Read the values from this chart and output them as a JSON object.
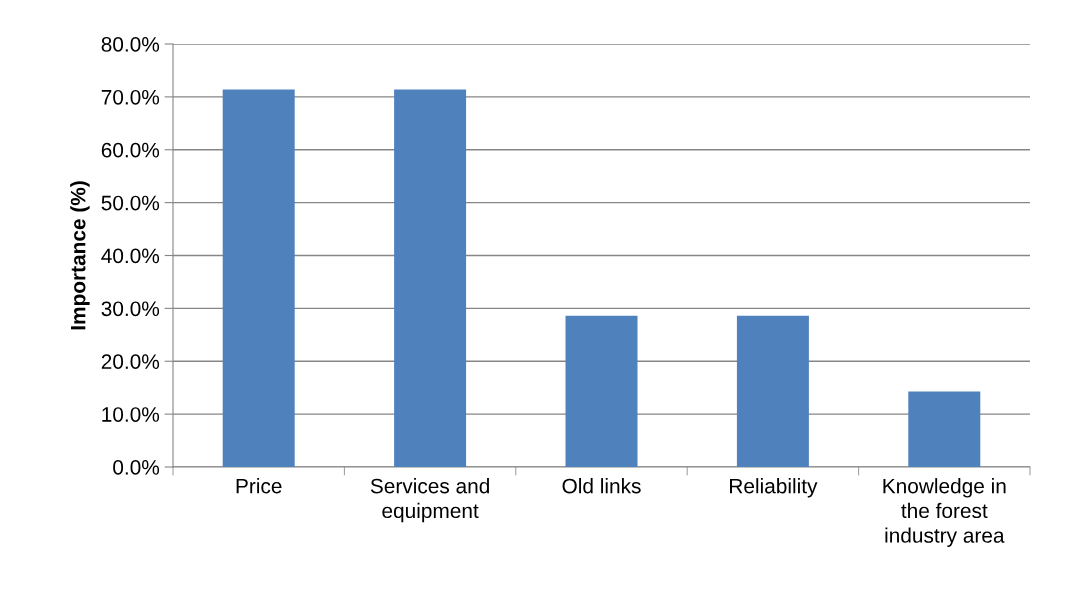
{
  "chart_data": {
    "type": "bar",
    "ylabel": "Importance (%)",
    "categories": [
      "Price",
      "Services and\nequipment",
      "Old links",
      "Reliability",
      "Knowledge in\nthe forest\nindustry area"
    ],
    "values": [
      71.4,
      71.4,
      28.6,
      28.6,
      14.3
    ],
    "color": "#4f81bd",
    "ylim": [
      0,
      80
    ],
    "yticks": [
      {
        "value": 0,
        "label": "0.0%"
      },
      {
        "value": 10,
        "label": "10.0%"
      },
      {
        "value": 20,
        "label": "20.0%"
      },
      {
        "value": 30,
        "label": "30.0%"
      },
      {
        "value": 40,
        "label": "40.0%"
      },
      {
        "value": 50,
        "label": "50.0%"
      },
      {
        "value": 60,
        "label": "60.0%"
      },
      {
        "value": 70,
        "label": "70.0%"
      },
      {
        "value": 80,
        "label": "80.0%"
      }
    ],
    "grid": "y",
    "legend": false
  }
}
